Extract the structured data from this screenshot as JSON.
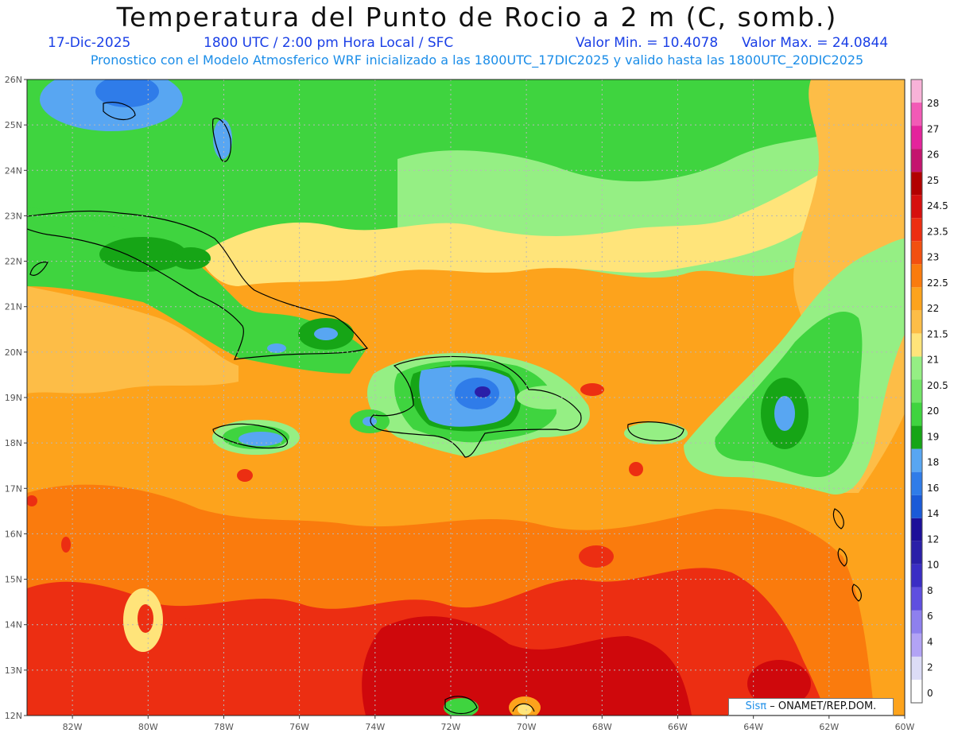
{
  "header": {
    "title": "Temperatura del Punto de Rocio a 2 m (C, somb.)",
    "date": "17-Dic-2025",
    "time": "1800 UTC / 2:00 pm Hora Local / SFC",
    "min_label": "Valor Min. = 10.4078",
    "max_label": "Valor Max. = 24.0844",
    "model_line": "Pronostico con el Modelo Atmosferico WRF inicializado a las 1800UTC_17DIC2025 y valido hasta las  1800UTC_20DIC2025"
  },
  "map": {
    "lon_range": [
      -83.2,
      -60
    ],
    "lat_range": [
      12,
      26
    ],
    "lat_ticks": [
      "12N",
      "13N",
      "14N",
      "15N",
      "16N",
      "17N",
      "18N",
      "19N",
      "20N",
      "21N",
      "22N",
      "23N",
      "24N",
      "25N",
      "26N"
    ],
    "lon_ticks": [
      "82W",
      "80W",
      "78W",
      "76W",
      "74W",
      "72W",
      "70W",
      "68W",
      "66W",
      "64W",
      "62W",
      "60W"
    ],
    "palette": {
      "pale_green": "#95ef84",
      "green": "#3fd43f",
      "dark_green": "#16a516",
      "yellow": "#ffe47a",
      "light_orange": "#fdbd47",
      "orange": "#fda31c",
      "dark_orange": "#fa7b0d",
      "red": "#ec2e12",
      "dark_red": "#cf080c",
      "light_blue": "#58a6f2",
      "blue": "#2f7ce9",
      "navy": "#2a1fa8"
    }
  },
  "colorbar": {
    "colors": [
      "#ffffff",
      "#dcdcf6",
      "#b2a3f5",
      "#8e80ee",
      "#5f4fe0",
      "#3a2dc4",
      "#2a1fa8",
      "#1c0f99",
      "#1a5ad8",
      "#2f7ce9",
      "#58a6f2",
      "#16a516",
      "#3fd43f",
      "#72e567",
      "#95ef84",
      "#ffe47a",
      "#fdbd47",
      "#fda31c",
      "#fa7b0d",
      "#f25010",
      "#ec2e12",
      "#d60f0e",
      "#b20000",
      "#c4146e",
      "#e4239c",
      "#f25ab6",
      "#f8b2d8"
    ],
    "labels": [
      "0",
      "2",
      "4",
      "6",
      "8",
      "10",
      "12",
      "14",
      "16",
      "18",
      "19",
      "20",
      "20.5",
      "21",
      "21.5",
      "22",
      "22.5",
      "23",
      "23.5",
      "24.5",
      "25",
      "26",
      "27",
      "28"
    ]
  },
  "credit": {
    "sis": "Sisπ",
    "org": "– ONAMET/REP.DOM."
  }
}
